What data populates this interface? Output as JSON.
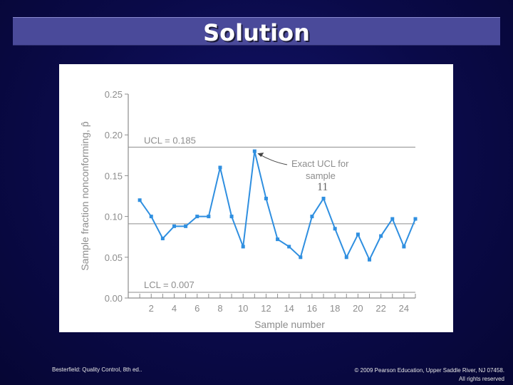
{
  "slide": {
    "title": "Solution",
    "footer_left": "Besterfield: Quality Control, 8th ed..",
    "footer_right_line1": "© 2009 Pearson Education, Upper Saddle River, NJ 07458.",
    "footer_right_line2": "All rights reserved"
  },
  "colors": {
    "background": "#0b0b4a",
    "title_bar": "#4a4a9a",
    "series": "#2f8fe0",
    "limit_line": "#8d8d8d"
  },
  "chart_data": {
    "type": "line",
    "ylabel": "Sample fraction nonconforming, p̂",
    "xlabel": "Sample number",
    "ylim": [
      0,
      0.25
    ],
    "xlim": [
      0,
      25
    ],
    "yticks": [
      "0.00",
      "0.05",
      "0.10",
      "0.15",
      "0.20",
      "0.25"
    ],
    "ytick_values": [
      0,
      0.05,
      0.1,
      0.15,
      0.2,
      0.25
    ],
    "xtick_labels": [
      "2",
      "4",
      "6",
      "8",
      "10",
      "12",
      "14",
      "16",
      "18",
      "20",
      "22",
      "24"
    ],
    "xtick_values": [
      2,
      4,
      6,
      8,
      10,
      12,
      14,
      16,
      18,
      20,
      22,
      24
    ],
    "series": [
      {
        "x": [
          1,
          2,
          3,
          4,
          5,
          6,
          7,
          8,
          9,
          10,
          11,
          12,
          13,
          14,
          15,
          16,
          17,
          18,
          19,
          20,
          21,
          22,
          23,
          24,
          25
        ],
        "values": [
          0.12,
          0.1,
          0.073,
          0.088,
          0.088,
          0.1,
          0.1,
          0.16,
          0.1,
          0.063,
          0.18,
          0.122,
          0.072,
          0.063,
          0.05,
          0.1,
          0.122,
          0.085,
          0.05,
          0.078,
          0.047,
          0.076,
          0.097,
          0.063,
          0.097
        ]
      }
    ],
    "limits": [
      {
        "label": "UCL = 0.185",
        "value": 0.185
      },
      {
        "label": "",
        "value": 0.091
      },
      {
        "label": "LCL = 0.007",
        "value": 0.007
      }
    ],
    "annotation": {
      "line1": "Exact UCL for",
      "line2": "sample",
      "line3": "11",
      "target_x": 11,
      "target_value": 0.18
    }
  }
}
